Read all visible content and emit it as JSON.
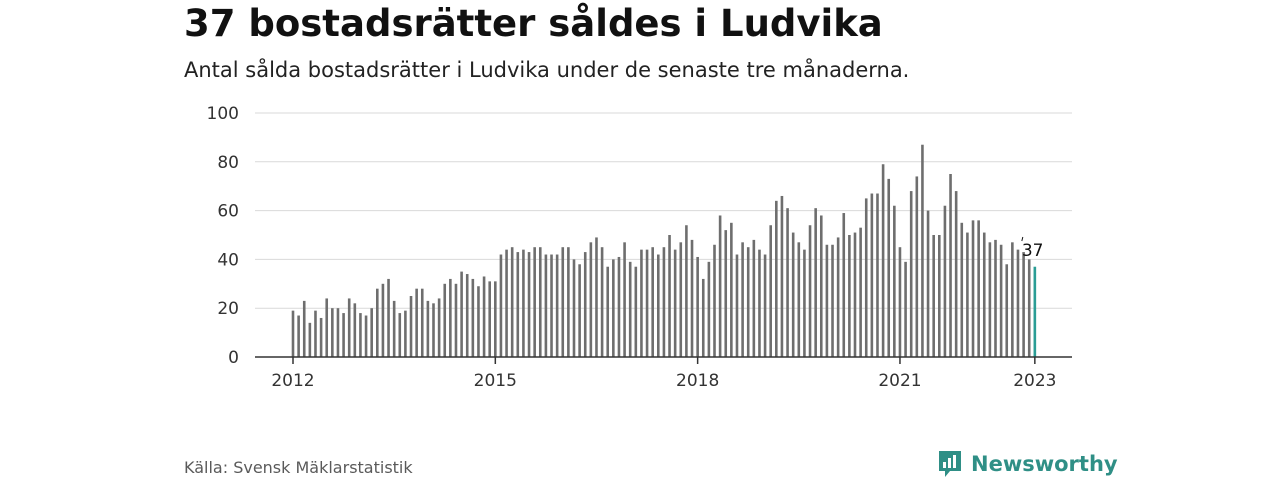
{
  "header": {
    "title": "37 bostadsrätter såldes i Ludvika",
    "subtitle": "Antal sålda bostadsrätter i Ludvika under de senaste tre månaderna."
  },
  "footer": {
    "source": "Källa: Svensk Mäklarstatistik",
    "brand": "Newsworthy"
  },
  "colors": {
    "bar": "#6e6e6e",
    "highlight": "#2a9d95",
    "grid": "#d9d9d9",
    "axis": "#333333",
    "brand": "#2f8f86"
  },
  "chart_data": {
    "type": "bar",
    "title": "37 bostadsrätter såldes i Ludvika",
    "subtitle": "Antal sålda bostadsrätter i Ludvika under de senaste tre månaderna.",
    "xlabel": "",
    "ylabel": "",
    "ylim": [
      0,
      100
    ],
    "yticks": [
      0,
      20,
      40,
      60,
      80,
      100
    ],
    "xticks": [
      {
        "label": "2012",
        "index": 0
      },
      {
        "label": "2015",
        "index": 36
      },
      {
        "label": "2018",
        "index": 72
      },
      {
        "label": "2021",
        "index": 108
      },
      {
        "label": "2023",
        "index": 132
      }
    ],
    "x_start": "2012-01",
    "x_end": "2023-01",
    "grid": true,
    "highlight": {
      "index": 132,
      "label": "37"
    },
    "values": [
      19,
      17,
      23,
      14,
      19,
      16,
      24,
      20,
      20,
      18,
      24,
      22,
      18,
      17,
      20,
      28,
      30,
      32,
      23,
      18,
      19,
      25,
      28,
      28,
      23,
      22,
      24,
      30,
      32,
      30,
      35,
      34,
      32,
      29,
      33,
      31,
      31,
      42,
      44,
      45,
      43,
      44,
      43,
      45,
      45,
      42,
      42,
      42,
      45,
      45,
      40,
      38,
      43,
      47,
      49,
      45,
      37,
      40,
      41,
      47,
      39,
      37,
      44,
      44,
      45,
      42,
      45,
      50,
      44,
      47,
      54,
      48,
      41,
      32,
      39,
      46,
      58,
      52,
      55,
      42,
      47,
      45,
      48,
      44,
      42,
      54,
      64,
      66,
      61,
      51,
      47,
      44,
      54,
      61,
      58,
      46,
      46,
      49,
      59,
      50,
      51,
      53,
      65,
      67,
      67,
      79,
      73,
      62,
      45,
      39,
      68,
      74,
      87,
      60,
      50,
      50,
      62,
      75,
      68,
      55,
      51,
      56,
      56,
      51,
      47,
      48,
      46,
      38,
      47,
      44,
      43,
      40,
      37
    ]
  }
}
